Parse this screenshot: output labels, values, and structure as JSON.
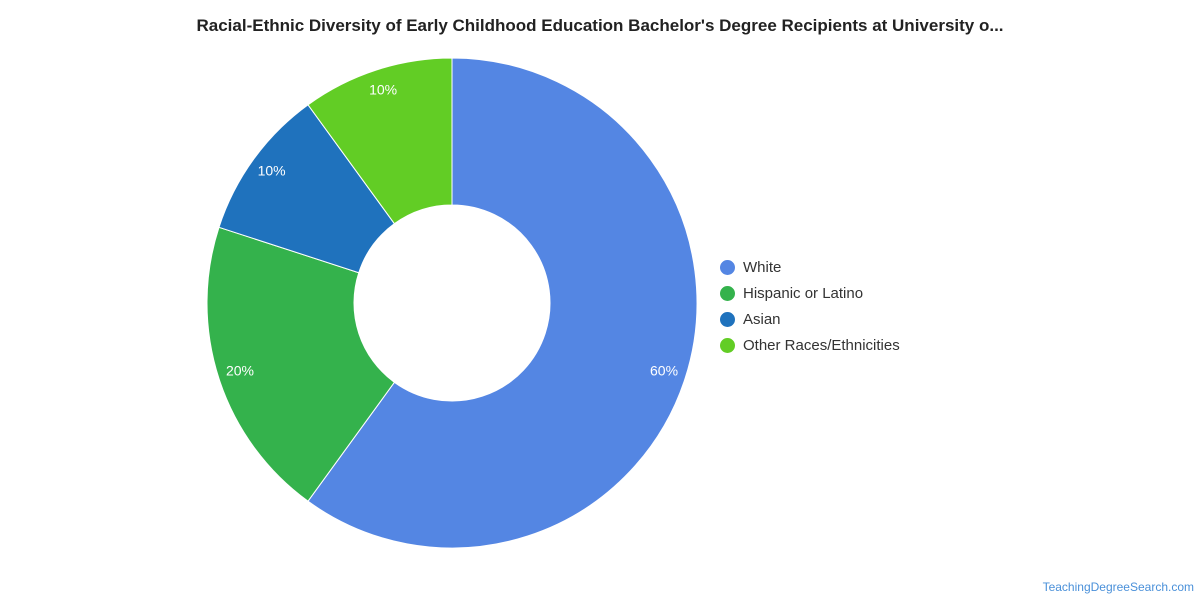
{
  "chart_data": {
    "type": "pie",
    "variant": "donut",
    "title": "Racial-Ethnic Diversity of Early Childhood Education Bachelor's Degree Recipients at University o...",
    "slices": [
      {
        "label": "White",
        "value": 60,
        "display": "60%",
        "color": "#5486e3"
      },
      {
        "label": "Hispanic or Latino",
        "value": 20,
        "display": "20%",
        "color": "#34b24c"
      },
      {
        "label": "Asian",
        "value": 10,
        "display": "10%",
        "color": "#1f72bd"
      },
      {
        "label": "Other Races/Ethnicities",
        "value": 10,
        "display": "10%",
        "color": "#62cd25"
      }
    ],
    "legend_position": "right"
  },
  "source_credit": "TeachingDegreeSearch.com"
}
